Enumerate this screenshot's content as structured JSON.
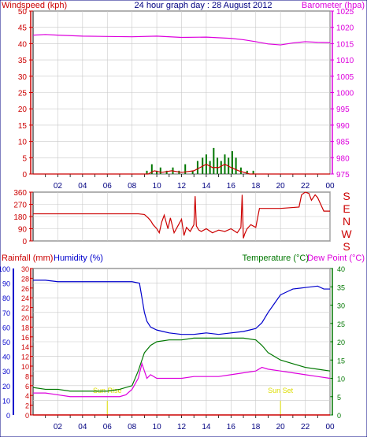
{
  "header": {
    "title": "24 hour graph day : 28 August 2012",
    "left_label": "Windspeed (kph)",
    "right_label": "Barometer (hpa)"
  },
  "colors": {
    "wind": "#cc0000",
    "gust": "#007700",
    "barometer": "#dd00dd",
    "direction": "#cc0000",
    "humidity": "#0000cc",
    "temperature": "#007700",
    "dewpoint": "#dd00dd",
    "axis_time": "#000080",
    "sun": "#dddd00",
    "grid": "#c8c8c8",
    "frame": "#000080"
  },
  "chart_data": [
    {
      "type": "line",
      "name": "wind-barometer",
      "left_axis": {
        "label": "Windspeed (kph)",
        "ylim": [
          0,
          50
        ],
        "ticks": [
          0,
          5,
          10,
          15,
          20,
          25,
          30,
          35,
          40,
          45,
          50
        ]
      },
      "right_axis": {
        "label": "Barometer (hpa)",
        "ylim": [
          975,
          1025
        ],
        "ticks": [
          975,
          980,
          985,
          990,
          995,
          1000,
          1005,
          1010,
          1015,
          1020,
          1025
        ]
      },
      "x_ticks": [
        "02",
        "04",
        "06",
        "08",
        "10",
        "12",
        "14",
        "16",
        "18",
        "20",
        "22",
        "00"
      ],
      "xlim": [
        0,
        24
      ],
      "series": [
        {
          "role": "barometer",
          "axis": "right",
          "x": [
            0,
            1,
            2,
            4,
            6,
            8,
            10,
            12,
            14,
            16,
            17,
            18,
            19,
            20,
            21,
            22,
            23,
            24
          ],
          "y": [
            1017.6,
            1017.8,
            1017.6,
            1017.3,
            1017.2,
            1017.1,
            1017.3,
            1016.9,
            1017.0,
            1016.6,
            1016.2,
            1015.6,
            1014.9,
            1014.6,
            1015.2,
            1015.6,
            1015.4,
            1015.3
          ]
        },
        {
          "role": "wind_avg",
          "axis": "left",
          "x": [
            0,
            9.3,
            9.8,
            10.4,
            11.2,
            12.0,
            13.0,
            13.5,
            14.0,
            14.5,
            15.0,
            15.5,
            16.0,
            16.6,
            17.5,
            24
          ],
          "y": [
            0,
            0,
            1,
            0.5,
            1,
            0.5,
            1,
            2,
            3,
            2,
            2,
            3,
            2,
            1,
            0,
            0
          ]
        },
        {
          "role": "wind_gust",
          "axis": "left",
          "x": [
            9.2,
            9.6,
            10.0,
            10.3,
            10.8,
            11.3,
            11.8,
            12.3,
            12.9,
            13.3,
            13.7,
            14.0,
            14.3,
            14.6,
            14.9,
            15.2,
            15.5,
            15.8,
            16.1,
            16.4,
            16.8,
            17.3,
            17.8
          ],
          "y": [
            1,
            3,
            1,
            2,
            1,
            2,
            1,
            3,
            1,
            4,
            5,
            6,
            4,
            8,
            5,
            4,
            6,
            5,
            7,
            5,
            2,
            1,
            1
          ]
        }
      ]
    },
    {
      "type": "line",
      "name": "wind-direction",
      "left_axis": {
        "ylim": [
          0,
          360
        ],
        "ticks": [
          0,
          90,
          180,
          270,
          360
        ]
      },
      "right_labels": [
        "S",
        "E",
        "N",
        "W",
        "S"
      ],
      "xlim": [
        0,
        24
      ],
      "series": [
        {
          "role": "direction",
          "x": [
            0,
            8.0,
            8.5,
            9.0,
            9.3,
            9.5,
            9.7,
            10.0,
            10.2,
            10.4,
            10.6,
            10.9,
            11.1,
            11.4,
            11.7,
            12.0,
            12.2,
            12.4,
            12.7,
            13.0,
            13.1,
            13.2,
            13.4,
            13.6,
            14.0,
            14.5,
            15.0,
            15.5,
            16.0,
            16.5,
            16.8,
            16.9,
            17.0,
            17.1,
            17.3,
            17.6,
            18.0,
            18.3,
            18.6,
            20.0,
            21.5,
            21.7,
            22.0,
            22.3,
            22.5,
            22.8,
            23.0,
            23.3,
            23.5,
            24
          ],
          "y": [
            200,
            200,
            200,
            195,
            170,
            150,
            120,
            90,
            60,
            140,
            190,
            90,
            170,
            60,
            110,
            160,
            40,
            100,
            70,
            120,
            330,
            110,
            80,
            70,
            90,
            60,
            80,
            70,
            90,
            60,
            100,
            340,
            20,
            50,
            90,
            120,
            100,
            240,
            240,
            240,
            250,
            340,
            360,
            350,
            300,
            340,
            320,
            260,
            220,
            220
          ]
        }
      ]
    },
    {
      "type": "line",
      "name": "temp-humidity",
      "header_labels": {
        "rainfall": "Rainfall (mm)",
        "humidity": "Humidity (%)",
        "temperature": "Temperature (°C)",
        "dewpoint": "Dew Point (°C)"
      },
      "rain_axis": {
        "ylim": [
          0,
          30
        ],
        "ticks": [
          0,
          2,
          4,
          6,
          8,
          10,
          12,
          14,
          16,
          18,
          20,
          22,
          24,
          26,
          28,
          30
        ]
      },
      "humidity_axis": {
        "ylim": [
          0,
          100
        ],
        "ticks": [
          0,
          10,
          20,
          30,
          40,
          50,
          60,
          70,
          80,
          90,
          100
        ]
      },
      "temp_axis": {
        "ylim": [
          0,
          40
        ],
        "ticks": [
          0,
          5,
          10,
          15,
          20,
          25,
          30,
          35,
          40
        ]
      },
      "x_ticks": [
        "02",
        "04",
        "06",
        "08",
        "10",
        "12",
        "14",
        "16",
        "18",
        "20",
        "22",
        "00"
      ],
      "xlim": [
        0,
        24
      ],
      "sun_rise_label": "Sun Rise",
      "sun_set_label": "Sun Set",
      "sun_rise_hour": 6.0,
      "sun_set_hour": 20.0,
      "series": [
        {
          "role": "humidity",
          "axis": "humidity",
          "x": [
            0,
            1,
            2,
            3,
            4,
            5,
            6,
            7,
            8,
            8.6,
            8.8,
            9.0,
            9.2,
            9.5,
            10,
            10.5,
            11,
            12,
            13,
            14,
            15,
            16,
            17,
            17.5,
            18,
            18.5,
            19,
            19.5,
            20,
            20.5,
            21,
            22,
            23,
            23.5,
            24
          ],
          "y": [
            92,
            92,
            91,
            91,
            91,
            91,
            91,
            91,
            91,
            90,
            80,
            70,
            64,
            60,
            58,
            57,
            56,
            55,
            55,
            56,
            55,
            56,
            57,
            58,
            59,
            63,
            70,
            76,
            82,
            84,
            86,
            87,
            88,
            86,
            86
          ]
        },
        {
          "role": "temperature",
          "axis": "temp",
          "x": [
            0,
            1,
            2,
            3,
            4,
            5,
            6,
            7,
            8,
            8.5,
            9.0,
            9.5,
            10,
            11,
            12,
            13,
            14,
            15,
            16,
            17,
            18,
            18.5,
            19,
            20,
            21,
            22,
            23,
            24
          ],
          "y": [
            7.5,
            7,
            7,
            6.5,
            6.5,
            6.5,
            6.5,
            7,
            8,
            12,
            17,
            19,
            20,
            20.5,
            20.5,
            21,
            21,
            21,
            21,
            21,
            20.5,
            19,
            17,
            15,
            14,
            13,
            12.5,
            12
          ]
        },
        {
          "role": "dewpoint",
          "axis": "temp",
          "x": [
            0,
            1,
            2,
            3,
            4,
            5,
            6,
            7,
            7.5,
            8,
            8.5,
            8.8,
            9.0,
            9.2,
            9.5,
            10,
            11,
            12,
            13,
            14,
            15,
            16,
            17,
            18,
            18.5,
            19,
            20,
            21,
            22,
            23,
            24
          ],
          "y": [
            6,
            6,
            5.5,
            5,
            5,
            5,
            5,
            5,
            5.5,
            7,
            10,
            14,
            12,
            10,
            11,
            10,
            10,
            10,
            10.5,
            10.5,
            10.5,
            11,
            11.5,
            12,
            13,
            12.5,
            12,
            11.5,
            11,
            10.5,
            10
          ]
        }
      ]
    }
  ]
}
